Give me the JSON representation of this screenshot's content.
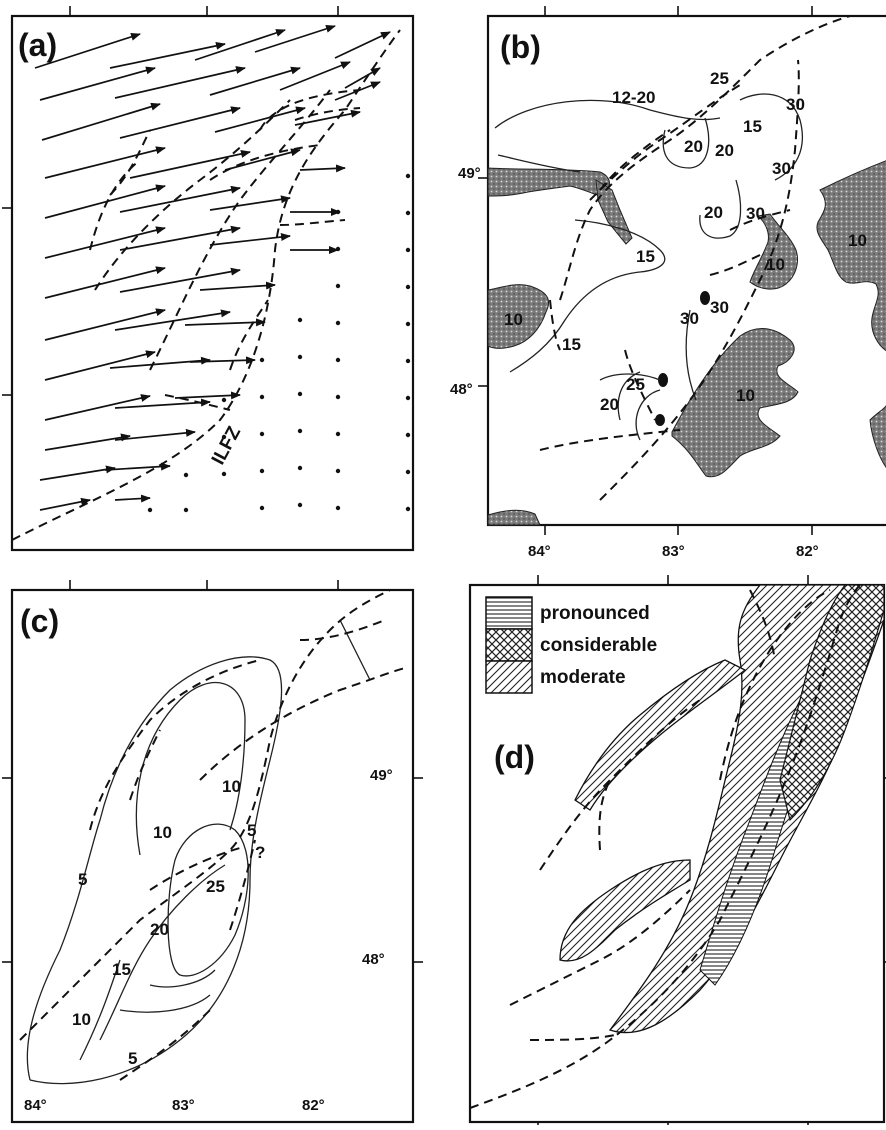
{
  "panels": {
    "a": {
      "label": "(a)",
      "fault_label": "ILFZ"
    },
    "b": {
      "label": "(b)",
      "contour_labels": [
        "12-20",
        "25",
        "30",
        "15",
        "20",
        "20",
        "30",
        "20",
        "30",
        "10",
        "10",
        "15",
        "15",
        "10",
        "30",
        "30",
        "25",
        "20",
        "10"
      ],
      "lat_labels": [
        "49°",
        "48°"
      ],
      "lon_labels": [
        "84°",
        "83°",
        "82°"
      ]
    },
    "c": {
      "label": "(c)",
      "contour_labels": [
        "10",
        "10",
        "5",
        "?",
        "5",
        "25",
        "20",
        "15",
        "10",
        "5"
      ],
      "lat_labels": [
        "49°",
        "48°"
      ],
      "lon_labels": [
        "84°",
        "83°",
        "82°"
      ]
    },
    "d": {
      "label": "(d)",
      "legend": [
        "pronounced",
        "considerable",
        "moderate"
      ]
    }
  }
}
